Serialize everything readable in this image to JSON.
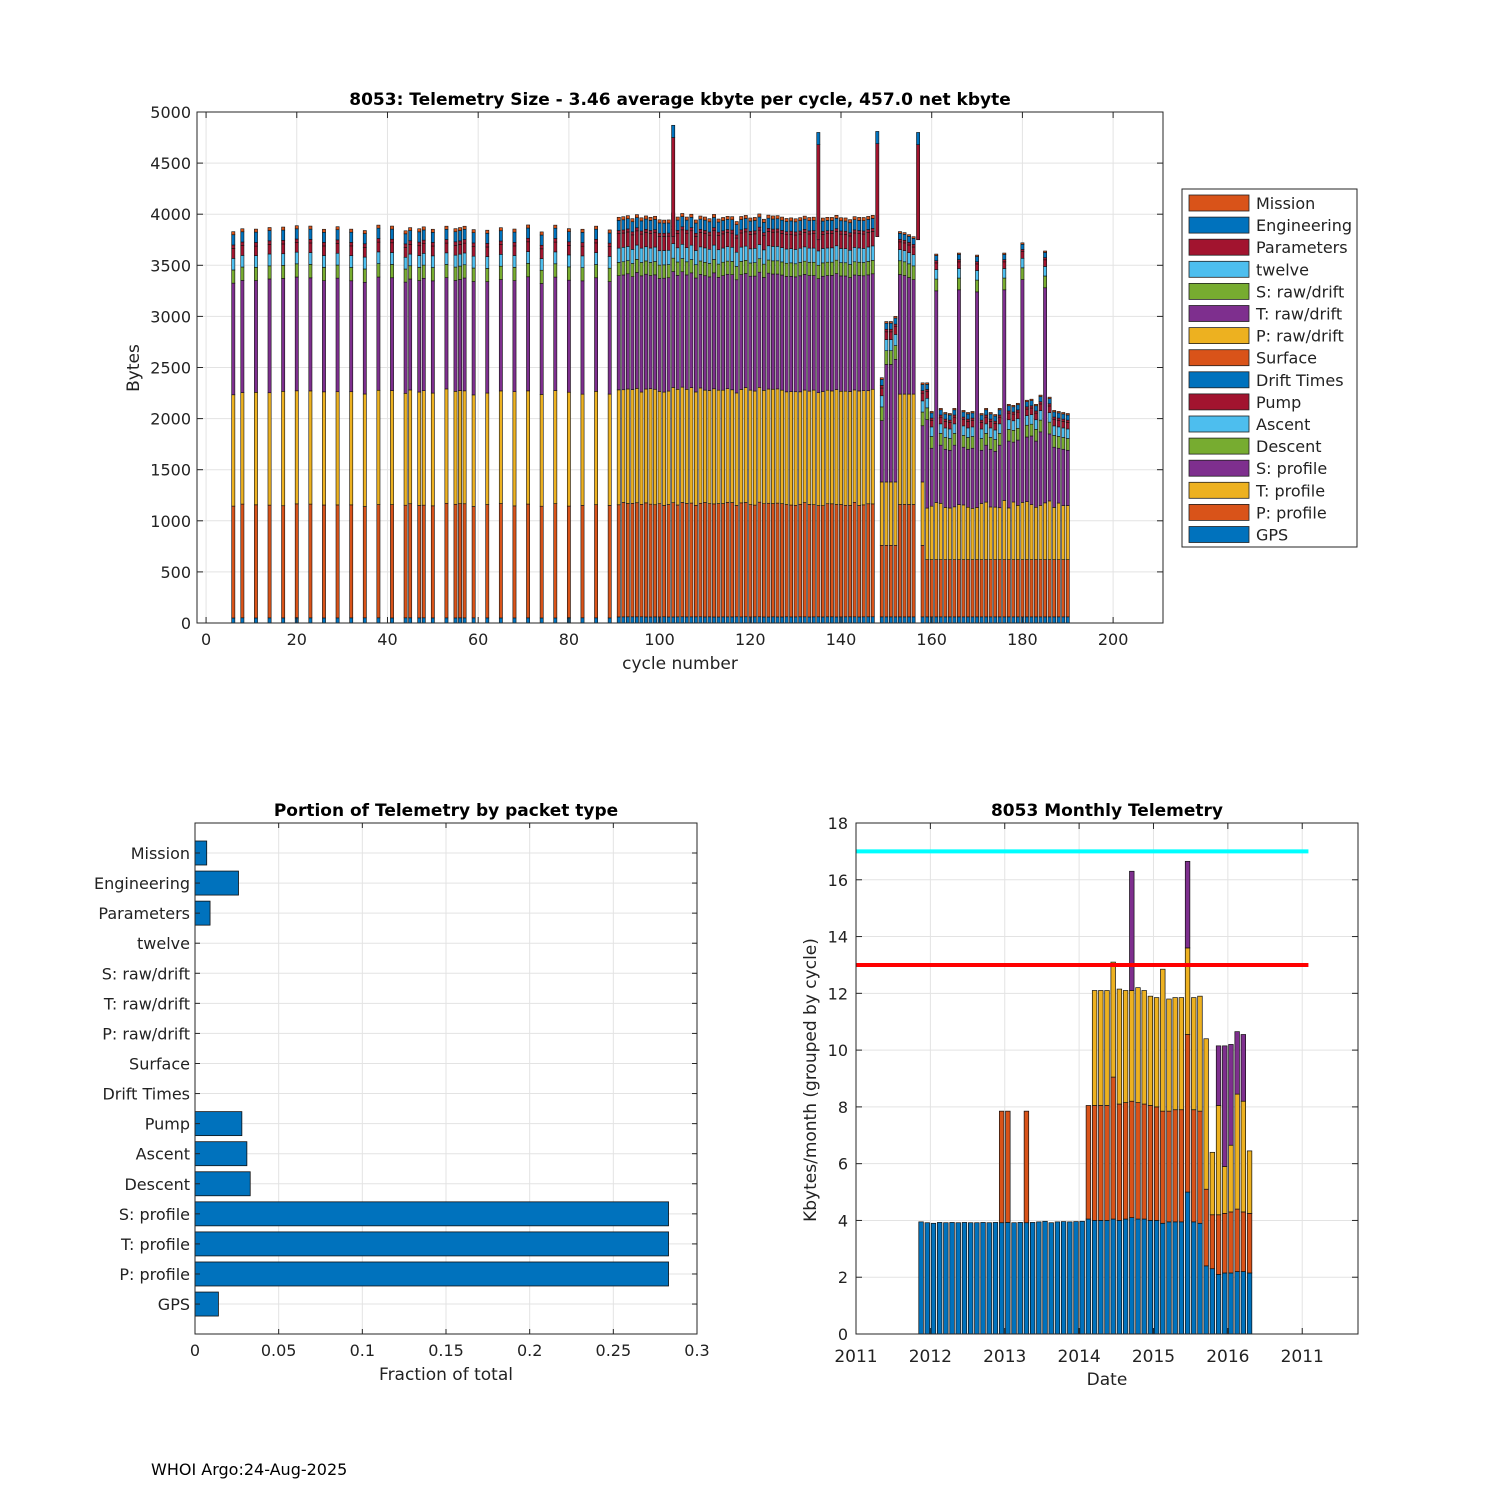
{
  "chart_data": [
    {
      "type": "bar",
      "stacked": true,
      "title": "8053: Telemetry Size - 3.46 average kbyte per cycle,  457.0 net kbyte",
      "xlabel": "cycle number",
      "ylabel": "Bytes",
      "xlim": [
        -2,
        211
      ],
      "ylim": [
        0,
        5000
      ],
      "xticks": [
        0,
        20,
        40,
        60,
        80,
        100,
        120,
        140,
        160,
        180,
        200
      ],
      "yticks": [
        0,
        500,
        1000,
        1500,
        2000,
        2500,
        3000,
        3500,
        4000,
        4500,
        5000
      ],
      "grid": true,
      "legend_position": "right",
      "legend": [
        "Mission",
        "Engineering",
        "Parameters",
        "twelve",
        "S: raw/drift",
        "T: raw/drift",
        "P: raw/drift",
        "Surface",
        "Drift Times",
        "Pump",
        "Ascent",
        "Descent",
        "S: profile",
        "T: profile",
        "P: profile",
        "GPS"
      ],
      "stack_order": [
        "GPS",
        "P: profile",
        "T: profile",
        "S: profile",
        "Descent",
        "Ascent",
        "Pump",
        "Drift Times",
        "Surface",
        "P: raw/drift",
        "T: raw/drift",
        "S: raw/drift",
        "twelve",
        "Parameters",
        "Engineering",
        "Mission"
      ],
      "early_cycles": [
        6,
        8,
        11,
        14,
        17,
        20,
        23,
        26,
        29,
        32,
        35,
        38,
        41,
        44,
        45,
        47,
        48,
        50,
        53,
        55,
        56,
        57,
        59,
        62,
        65,
        68,
        71,
        74,
        77,
        80,
        83,
        86,
        89
      ],
      "early_profile": {
        "GPS": 50,
        "P: profile": 1105,
        "T: profile": 1105,
        "S: profile": 1100,
        "Descent": 130,
        "Ascent": 115,
        "Pump": 95,
        "Parameters": 35,
        "Engineering": 100,
        "Mission": 30
      },
      "dense_range": [
        91,
        147
      ],
      "dense_profile": {
        "GPS": 60,
        "P: profile": 1105,
        "T: profile": 1115,
        "S: profile": 1120,
        "Descent": 130,
        "Ascent": 140,
        "Pump": 140,
        "Parameters": 30,
        "Engineering": 100,
        "Mission": 30
      },
      "spikes": [
        {
          "cycle": 103,
          "total": 4870
        },
        {
          "cycle": 135,
          "total": 4800
        },
        {
          "cycle": 148,
          "total": 4810
        },
        {
          "cycle": 157,
          "total": 4800
        }
      ],
      "late_cycles": [
        149,
        150,
        151,
        152,
        153,
        154,
        155,
        156,
        158,
        159,
        160,
        161,
        162,
        163,
        164,
        165,
        166,
        167,
        168,
        169,
        170,
        171,
        172,
        173,
        174,
        175,
        176,
        177,
        178,
        179,
        180,
        181,
        182,
        183,
        184,
        185,
        186,
        187,
        188,
        189,
        190
      ],
      "late_totals": [
        2400,
        2950,
        2950,
        3000,
        3830,
        3820,
        3800,
        3780,
        2350,
        2350,
        2070,
        3610,
        2100,
        2060,
        2050,
        2100,
        3620,
        2080,
        2060,
        2070,
        3600,
        2050,
        2100,
        2060,
        2040,
        2100,
        3620,
        2140,
        2130,
        2150,
        3720,
        2180,
        2190,
        2140,
        2230,
        3640,
        2210,
        2080,
        2070,
        2060,
        2050
      ]
    },
    {
      "type": "bar",
      "orientation": "horizontal",
      "title": "Portion of Telemetry by packet type",
      "xlabel": "Fraction of total",
      "ylabel": "",
      "xlim": [
        0,
        0.3
      ],
      "xticks": [
        "0",
        "0.05",
        "0.1",
        "0.15",
        "0.2",
        "0.25",
        "0.3"
      ],
      "grid": true,
      "categories": [
        "Mission",
        "Engineering",
        "Parameters",
        "twelve",
        "S: raw/drift",
        "T: raw/drift",
        "P: raw/drift",
        "Surface",
        "Drift Times",
        "Pump",
        "Ascent",
        "Descent",
        "S: profile",
        "T: profile",
        "P: profile",
        "GPS"
      ],
      "values": [
        0.007,
        0.026,
        0.009,
        0,
        0,
        0,
        0,
        0,
        0,
        0.028,
        0.031,
        0.033,
        0.283,
        0.283,
        0.283,
        0.014
      ]
    },
    {
      "type": "bar",
      "stacked": true,
      "title": "8053 Monthly Telemetry",
      "xlabel": "Date",
      "ylabel": "Kbytes/month (grouped by cycle)",
      "ylim": [
        0,
        18
      ],
      "xlim": [
        0,
        81
      ],
      "yticks": [
        0,
        2,
        4,
        6,
        8,
        10,
        12,
        14,
        16,
        18
      ],
      "xticks": [
        {
          "month": 0,
          "label": "2011"
        },
        {
          "month": 12,
          "label": "2012"
        },
        {
          "month": 24,
          "label": "2013"
        },
        {
          "month": 36,
          "label": "2014"
        },
        {
          "month": 48,
          "label": "2015"
        },
        {
          "month": 60,
          "label": "2016"
        },
        {
          "month": 72,
          "label": "2011"
        }
      ],
      "grid": true,
      "reference_lines": [
        {
          "value": 17,
          "color": "#00ffff"
        },
        {
          "value": 13,
          "color": "#ff0000"
        }
      ],
      "months_start": 10,
      "levels": [
        [
          3.95
        ],
        [
          3.92
        ],
        [
          3.9
        ],
        [
          3.93
        ],
        [
          3.92
        ],
        [
          3.93
        ],
        [
          3.92
        ],
        [
          3.93
        ],
        [
          3.92
        ],
        [
          3.92
        ],
        [
          3.93
        ],
        [
          3.92
        ],
        [
          3.93
        ],
        [
          3.92,
          7.85
        ],
        [
          3.93,
          7.85
        ],
        [
          3.92
        ],
        [
          3.93
        ],
        [
          3.92,
          7.85
        ],
        [
          3.93
        ],
        [
          3.95
        ],
        [
          3.97
        ],
        [
          3.92
        ],
        [
          3.95
        ],
        [
          3.96
        ],
        [
          3.95
        ],
        [
          3.96
        ],
        [
          3.97
        ],
        [
          4.05,
          8.05
        ],
        [
          4.0,
          8.05,
          12.1
        ],
        [
          4.0,
          8.05,
          12.1
        ],
        [
          4.0,
          8.05,
          12.1
        ],
        [
          4.05,
          9.05,
          13.1
        ],
        [
          4.0,
          8.1,
          12.15
        ],
        [
          4.05,
          8.15,
          12.1
        ],
        [
          4.1,
          8.2,
          12.1,
          16.3
        ],
        [
          4.05,
          8.15,
          12.2
        ],
        [
          4.05,
          8.1,
          12.1
        ],
        [
          4.0,
          8.05,
          11.9
        ],
        [
          4.0,
          8.0,
          11.85
        ],
        [
          3.9,
          7.85,
          12.85
        ],
        [
          3.95,
          7.85,
          11.8
        ],
        [
          3.95,
          7.9,
          11.85
        ],
        [
          3.95,
          7.9,
          11.85
        ],
        [
          5.0,
          10.55,
          13.6,
          16.65
        ],
        [
          3.95,
          7.9,
          11.85
        ],
        [
          3.9,
          7.85,
          11.9
        ],
        [
          2.4,
          5.1,
          10.4
        ],
        [
          2.3,
          4.2,
          6.4
        ],
        [
          2.1,
          4.2,
          8.05,
          10.15
        ],
        [
          2.15,
          4.25,
          5.9,
          10.15
        ],
        [
          2.15,
          4.3,
          6.65,
          10.2
        ],
        [
          2.2,
          4.4,
          8.45,
          10.65
        ],
        [
          2.2,
          4.3,
          8.2,
          10.55
        ],
        [
          2.15,
          4.25,
          6.45
        ]
      ]
    }
  ],
  "footer": "WHOI Argo:24-Aug-2025",
  "colors": {
    "Mission": "#D95319",
    "Engineering": "#0072BD",
    "Parameters": "#A2142F",
    "twelve": "#4DBEEE",
    "S: raw/drift": "#77AC30",
    "T: raw/drift": "#7E2F8E",
    "P: raw/drift": "#EDB120",
    "Surface": "#D95319",
    "Drift Times": "#0072BD",
    "Pump": "#A2142F",
    "Ascent": "#4DBEEE",
    "Descent": "#77AC30",
    "S: profile": "#7E2F8E",
    "T: profile": "#EDB120",
    "P: profile": "#D95319",
    "GPS": "#0072BD",
    "monthly_stack": [
      "#0072BD",
      "#D95319",
      "#EDB120",
      "#7E2F8E",
      "#77AC30"
    ],
    "gridline": "#e3e3e3"
  }
}
